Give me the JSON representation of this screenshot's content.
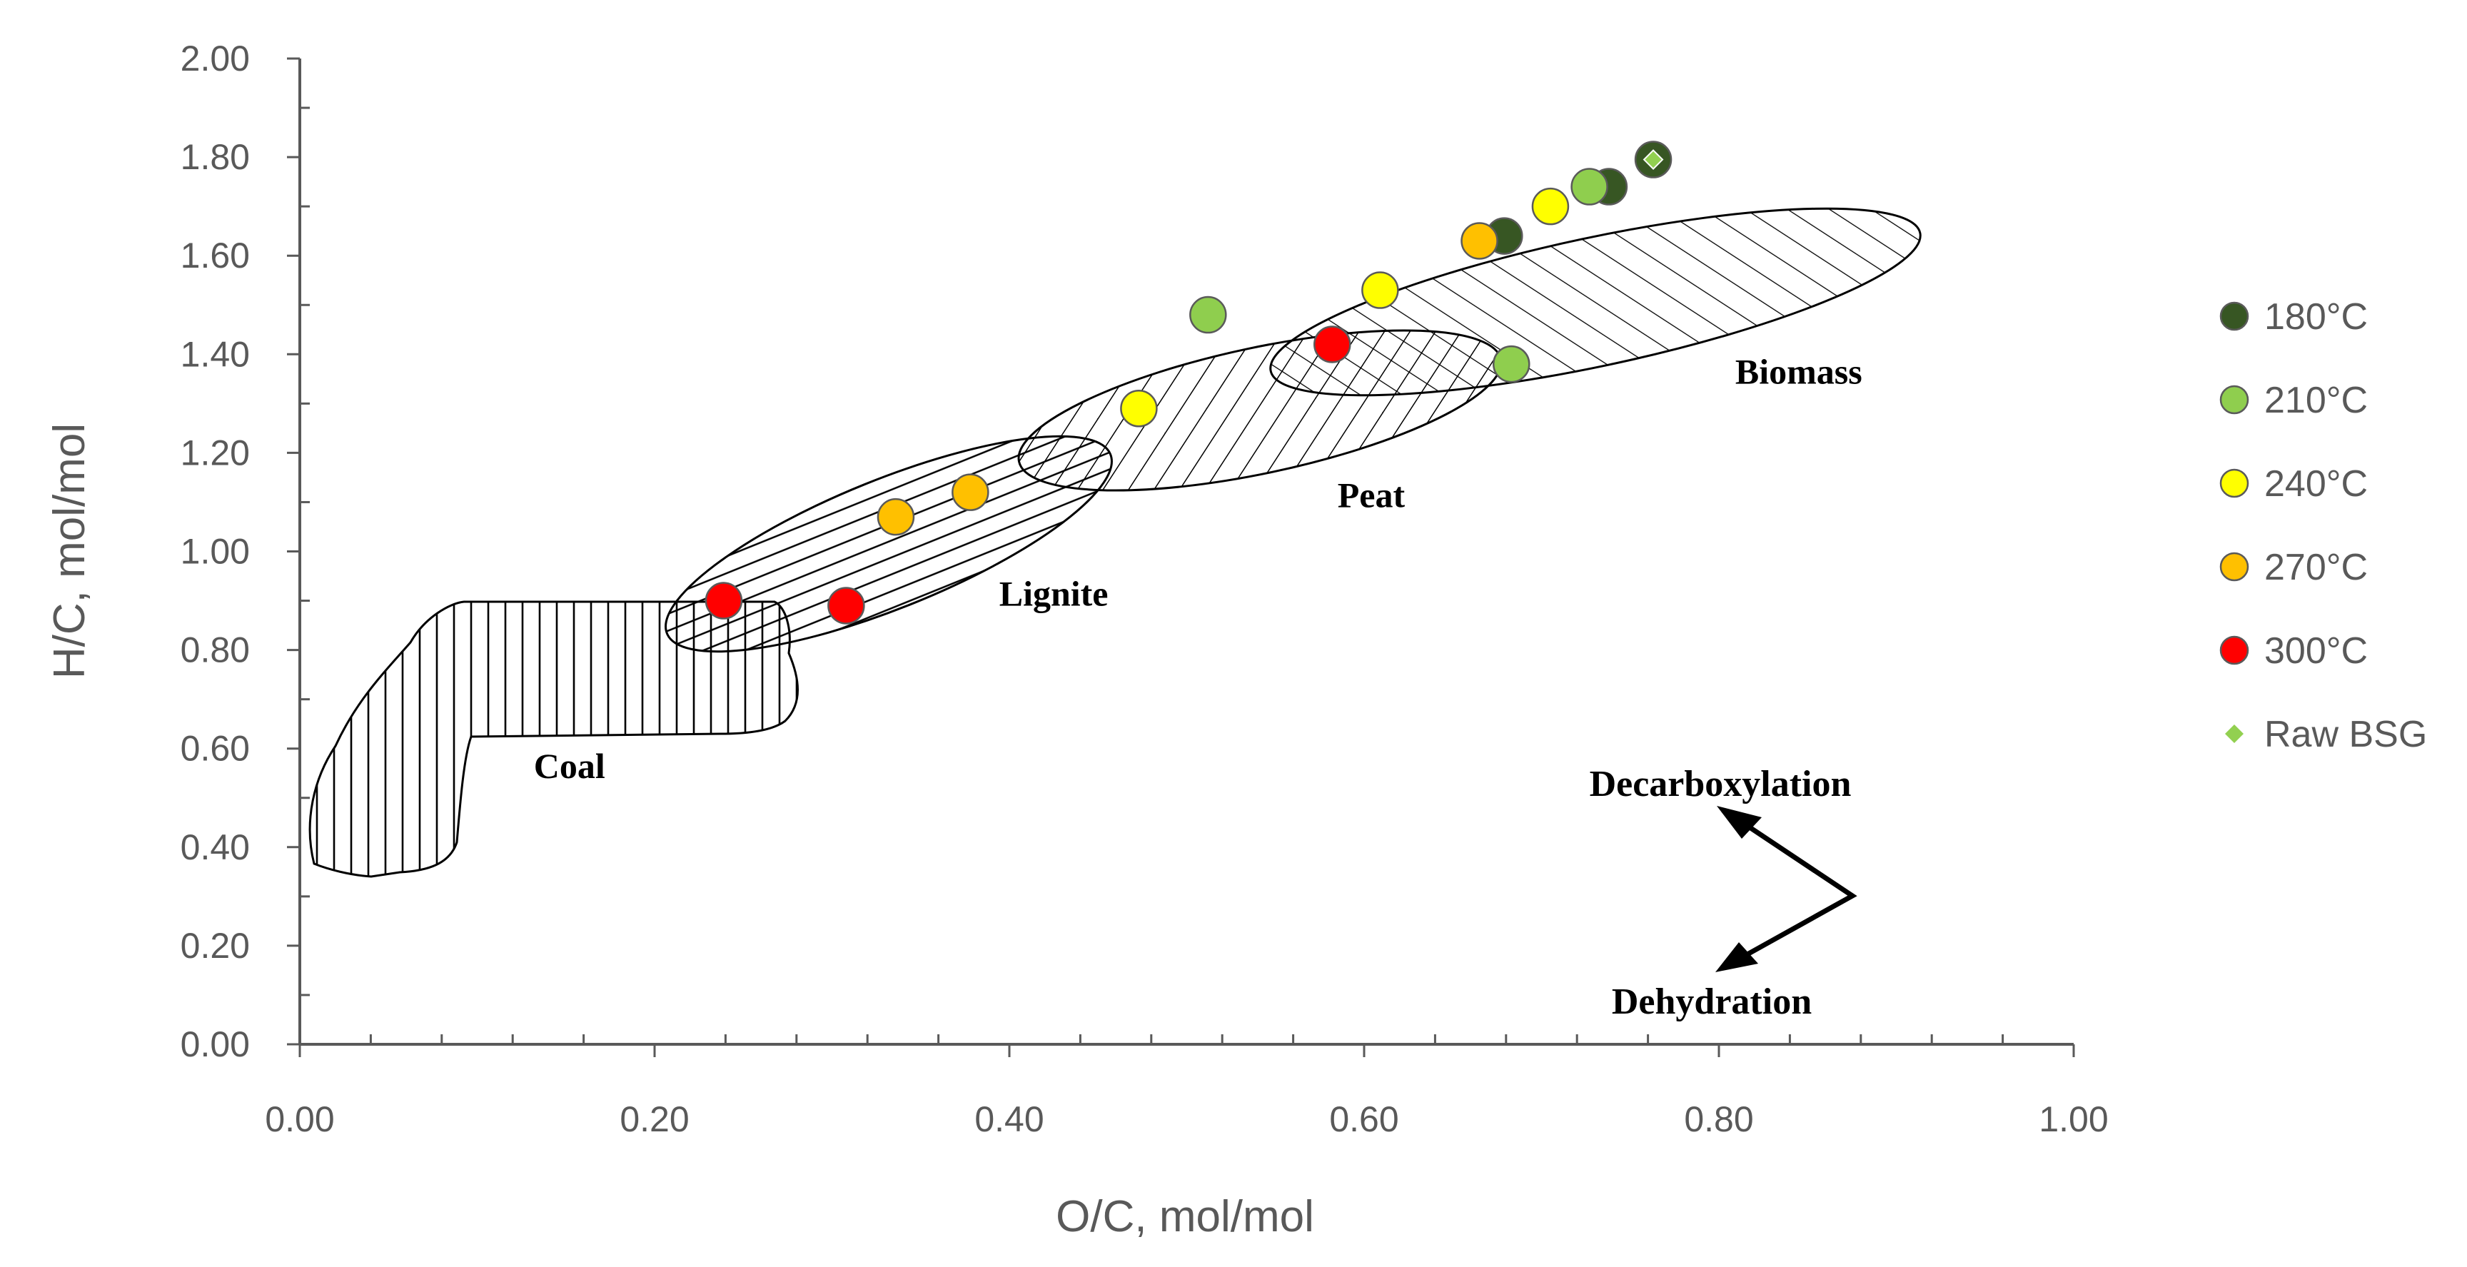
{
  "chart_data": {
    "type": "scatter",
    "xlabel": "O/C, mol/mol",
    "ylabel": "H/C, mol/mol",
    "xlim": [
      0,
      1
    ],
    "ylim": [
      0,
      2
    ],
    "xticks": [
      "0.00",
      "0.20",
      "0.40",
      "0.60",
      "0.80",
      "1.00"
    ],
    "yticks": [
      "0.00",
      "0.20",
      "0.40",
      "0.60",
      "0.80",
      "1.00",
      "1.20",
      "1.40",
      "1.60",
      "1.80",
      "2.00"
    ],
    "legend_position": "right",
    "series": [
      {
        "name": "180°C",
        "color": "#375623",
        "marker": "circle",
        "points": [
          [
            0.763,
            1.795
          ],
          [
            0.738,
            1.74
          ],
          [
            0.679,
            1.64
          ]
        ]
      },
      {
        "name": "210°C",
        "color": "#8fce4e",
        "marker": "circle",
        "points": [
          [
            0.727,
            1.74
          ],
          [
            0.512,
            1.48
          ],
          [
            0.683,
            1.38
          ]
        ]
      },
      {
        "name": "240°C",
        "color": "#ffff00",
        "marker": "circle",
        "points": [
          [
            0.705,
            1.7
          ],
          [
            0.609,
            1.53
          ],
          [
            0.473,
            1.29
          ]
        ]
      },
      {
        "name": "270°C",
        "color": "#ffc000",
        "marker": "circle",
        "points": [
          [
            0.665,
            1.63
          ],
          [
            0.378,
            1.12
          ],
          [
            0.336,
            1.07
          ]
        ]
      },
      {
        "name": "300°C",
        "color": "#ff0000",
        "marker": "circle",
        "points": [
          [
            0.582,
            1.42
          ],
          [
            0.239,
            0.9
          ],
          [
            0.308,
            0.89
          ]
        ]
      },
      {
        "name": "Raw BSG",
        "color": "#92d050",
        "marker": "diamond",
        "points": [
          [
            0.763,
            1.795
          ]
        ]
      }
    ],
    "regions": [
      {
        "name": "Coal",
        "label_at": [
          0.152,
          0.54
        ]
      },
      {
        "name": "Lignite",
        "label_at": [
          0.425,
          0.89
        ]
      },
      {
        "name": "Peat",
        "label_at": [
          0.604,
          1.09
        ]
      },
      {
        "name": "Biomass",
        "label_at": [
          0.845,
          1.34
        ]
      }
    ],
    "annotations": {
      "decarboxylation": "Decarboxylation",
      "dehydration": "Dehydration"
    }
  }
}
